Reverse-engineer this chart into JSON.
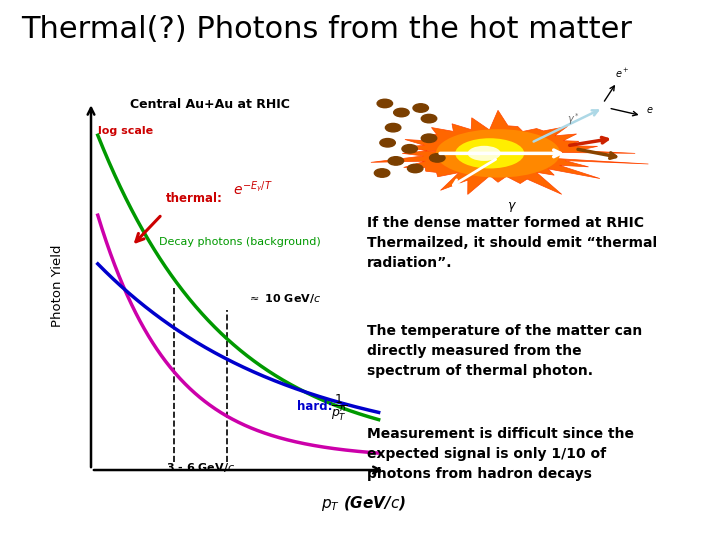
{
  "title": "Thermal(?) Photons from the hot matter",
  "title_fontsize": 22,
  "title_color": "#000000",
  "red_bar_color": "#cc0000",
  "background_color": "#ffffff",
  "plot_subtitle": "Central Au+Au at RHIC",
  "plot_ylabel": "Photon Yield",
  "log_scale_label": "log scale",
  "thermal_label": "thermal:",
  "decay_label": "Decay photons (background)",
  "text1": "If the dense matter formed at RHIC\nThermailzed, it should emit “thermal\nradiation”.",
  "text2": "The temperature of the matter can\ndirectly measured from the\nspectrum of thermal photon.",
  "text3": "Measurement is difficult since the\nexpected signal is only 1/10 of\nphotons from hadron decays",
  "green_color": "#009900",
  "magenta_color": "#cc00aa",
  "blue_color": "#0000cc",
  "red_color": "#cc0000"
}
